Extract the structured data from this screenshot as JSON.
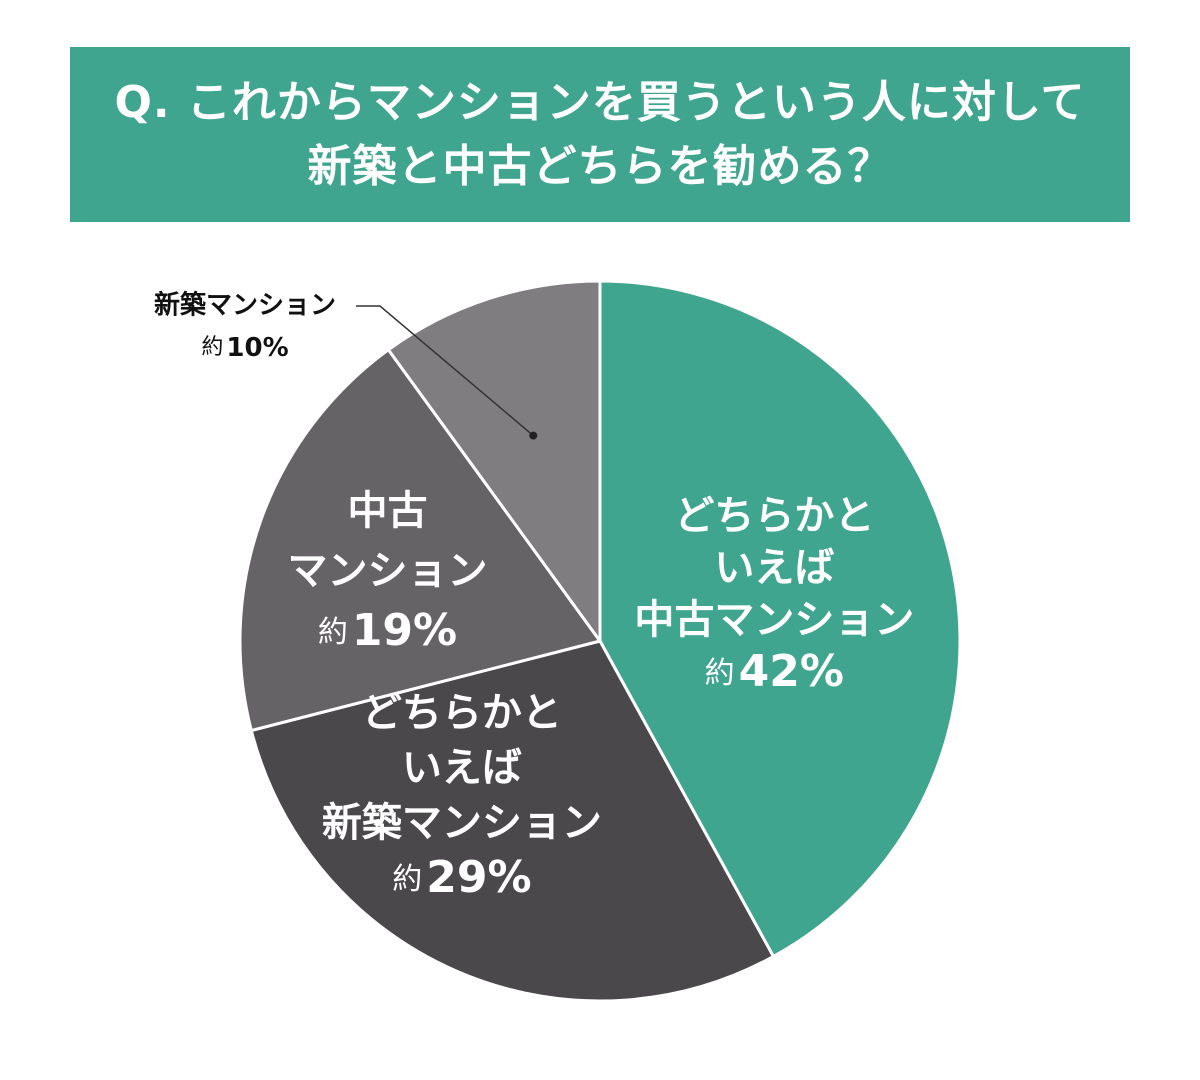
{
  "title": {
    "line1": "Q. これからマンションを買うという人に対して",
    "line2": "新築と中古どちらを勧める？"
  },
  "chart_data": {
    "type": "pie",
    "start_angle_deg": 0,
    "direction": "clockwise",
    "slices": [
      {
        "id": "somewhat-used",
        "label_lines": [
          "どちらかと",
          "いえば",
          "中古マンション"
        ],
        "prefix": "約",
        "value": 42,
        "value_text": "42%",
        "color": "#3fa58f",
        "text_color": "#ffffff",
        "label_position": "inside"
      },
      {
        "id": "somewhat-new",
        "label_lines": [
          "どちらかと",
          "いえば",
          "新築マンション"
        ],
        "prefix": "約",
        "value": 29,
        "value_text": "29%",
        "color": "#4a484b",
        "text_color": "#ffffff",
        "label_position": "inside"
      },
      {
        "id": "used",
        "label_lines": [
          "中古",
          "マンション"
        ],
        "prefix": "約",
        "value": 19,
        "value_text": "19%",
        "color": "#656366",
        "text_color": "#ffffff",
        "label_position": "inside"
      },
      {
        "id": "new",
        "label_lines": [
          "新築マンション"
        ],
        "prefix": "約",
        "value": 10,
        "value_text": "10%",
        "color": "#7f7d80",
        "text_color": "#111111",
        "label_position": "outside-top-left"
      }
    ]
  }
}
